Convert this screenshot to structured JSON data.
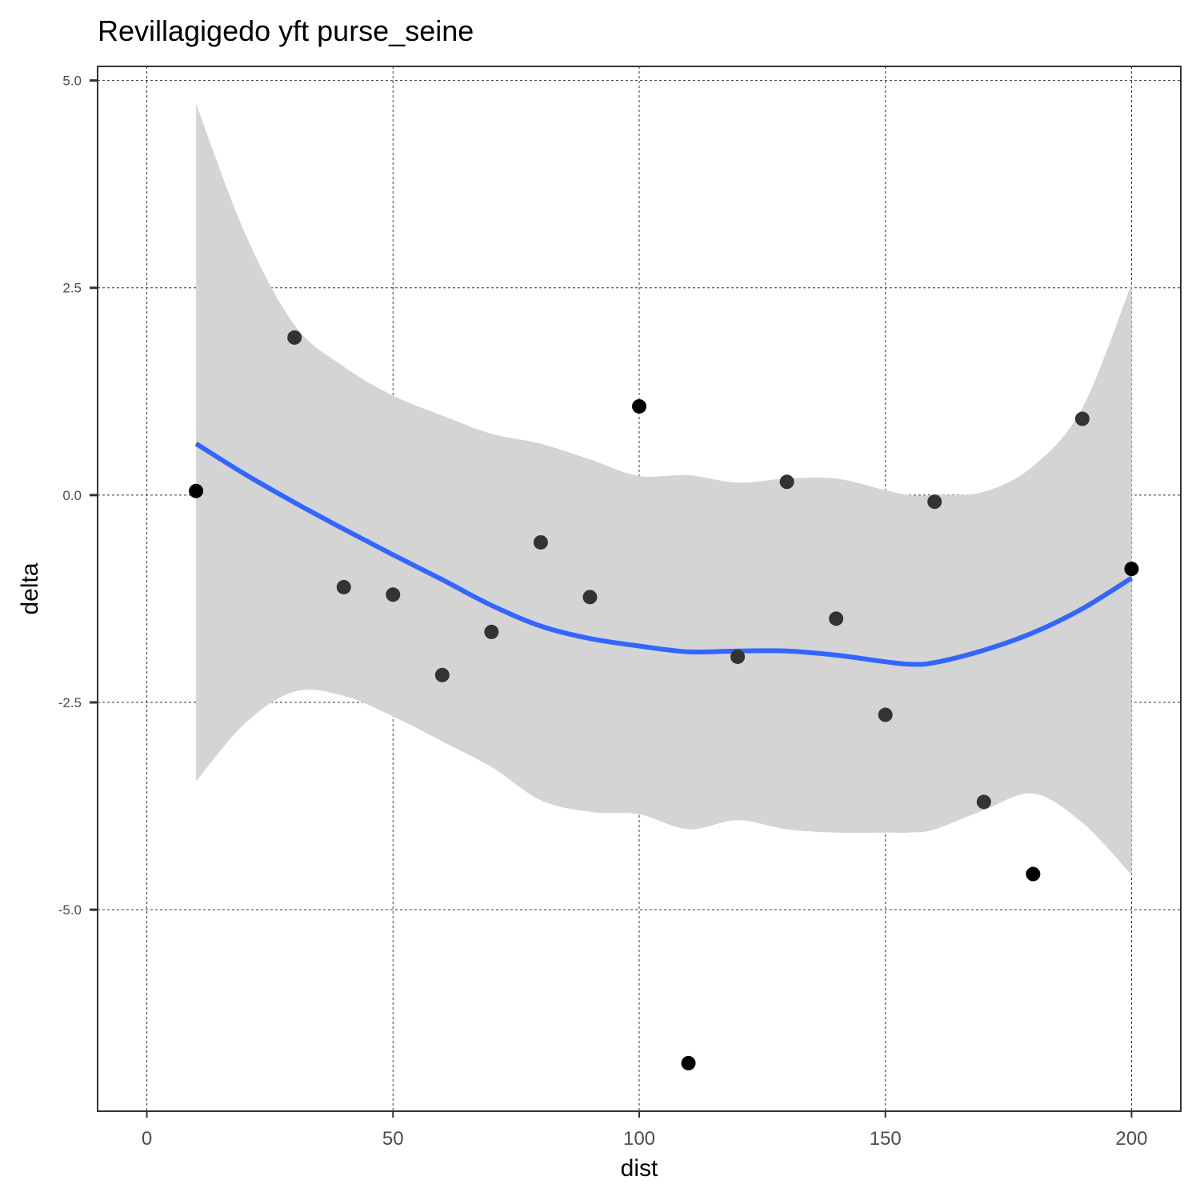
{
  "chart_data": {
    "type": "scatter",
    "title": "Revillagigedo yft purse_seine",
    "xlabel": "dist",
    "ylabel": "delta",
    "xlim": [
      -10,
      210
    ],
    "ylim": [
      -7.43,
      5.17
    ],
    "grid": true,
    "x_ticks": [
      0,
      50,
      100,
      150,
      200
    ],
    "x_tick_labels": [
      "0",
      "50",
      "100",
      "150",
      "200"
    ],
    "y_ticks": [
      -5.0,
      -2.5,
      0.0,
      2.5,
      5.0
    ],
    "y_tick_labels": [
      "-5.0",
      "-2.5",
      "0.0",
      "2.5",
      "5.0"
    ],
    "points": [
      {
        "x": 10,
        "y": 0.05,
        "shade": "#000000"
      },
      {
        "x": 30,
        "y": 1.9,
        "shade": "#333333"
      },
      {
        "x": 40,
        "y": -1.11,
        "shade": "#333333"
      },
      {
        "x": 50,
        "y": -1.2,
        "shade": "#333333"
      },
      {
        "x": 60,
        "y": -2.17,
        "shade": "#333333"
      },
      {
        "x": 70,
        "y": -1.65,
        "shade": "#333333"
      },
      {
        "x": 80,
        "y": -0.57,
        "shade": "#333333"
      },
      {
        "x": 90,
        "y": -1.23,
        "shade": "#333333"
      },
      {
        "x": 100,
        "y": 1.07,
        "shade": "#000000"
      },
      {
        "x": 110,
        "y": -6.85,
        "shade": "#000000"
      },
      {
        "x": 120,
        "y": -1.95,
        "shade": "#333333"
      },
      {
        "x": 130,
        "y": 0.16,
        "shade": "#333333"
      },
      {
        "x": 140,
        "y": -1.49,
        "shade": "#333333"
      },
      {
        "x": 150,
        "y": -2.65,
        "shade": "#333333"
      },
      {
        "x": 160,
        "y": -0.08,
        "shade": "#333333"
      },
      {
        "x": 170,
        "y": -3.7,
        "shade": "#333333"
      },
      {
        "x": 180,
        "y": -4.57,
        "shade": "#000000"
      },
      {
        "x": 190,
        "y": 0.92,
        "shade": "#333333"
      },
      {
        "x": 200,
        "y": -0.89,
        "shade": "#000000"
      }
    ],
    "smooth": {
      "method": "loess",
      "color": "#3366ff",
      "band_color": "#d4d4d4",
      "x": [
        10,
        20,
        30,
        40,
        50,
        60,
        70,
        80,
        90,
        100,
        110,
        120,
        130,
        140,
        150,
        155,
        160,
        170,
        180,
        190,
        200
      ],
      "y": [
        0.62,
        0.25,
        -0.09,
        -0.41,
        -0.72,
        -1.02,
        -1.33,
        -1.58,
        -1.73,
        -1.82,
        -1.89,
        -1.88,
        -1.88,
        -1.93,
        -2.01,
        -2.04,
        -2.02,
        -1.87,
        -1.66,
        -1.37,
        -1.0
      ],
      "upper": [
        4.72,
        3.15,
        2.05,
        1.55,
        1.2,
        0.96,
        0.74,
        0.62,
        0.43,
        0.23,
        0.24,
        0.15,
        0.2,
        0.2,
        0.06,
        0.0,
        0.0,
        0.04,
        0.35,
        1.05,
        2.55
      ],
      "lower": [
        -3.45,
        -2.75,
        -2.37,
        -2.42,
        -2.67,
        -2.97,
        -3.28,
        -3.68,
        -3.82,
        -3.85,
        -4.03,
        -3.92,
        -4.03,
        -4.07,
        -4.07,
        -4.07,
        -4.03,
        -3.8,
        -3.6,
        -3.95,
        -4.58
      ]
    }
  }
}
